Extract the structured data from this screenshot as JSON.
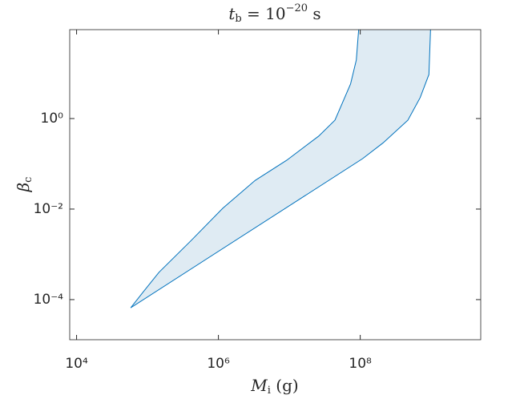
{
  "chart_data": {
    "type": "area",
    "title": {
      "base": "t",
      "sub": "b",
      "rest": " = 10",
      "sup": "−20",
      "unit": " s"
    },
    "xlabel": {
      "base": "M",
      "sub": "i",
      "unit": " (g)"
    },
    "ylabel": {
      "base": "β",
      "sub": "c"
    },
    "log_x": true,
    "log_y": true,
    "xlim": [
      8000,
      5000000000
    ],
    "ylim": [
      1.3e-05,
      92
    ],
    "xticks": [
      {
        "value": 10000,
        "label": "10⁴"
      },
      {
        "value": 1000000,
        "label": "10⁶"
      },
      {
        "value": 100000000,
        "label": "10⁸"
      }
    ],
    "yticks": [
      {
        "value": 0.0001,
        "label": "10⁻⁴"
      },
      {
        "value": 0.01,
        "label": "10⁻²"
      },
      {
        "value": 1,
        "label": "10⁰"
      }
    ],
    "fill_color": "#dfebf3",
    "line_color": "#0072bd",
    "series": [
      {
        "x": [
          58000,
          86000,
          145000,
          410000,
          1150000,
          3300000,
          9200000,
          26000000,
          44000000,
          73000000,
          88000000,
          95000000
        ],
        "values": [
          6.6e-05,
          0.000144,
          0.0004,
          0.002,
          0.0104,
          0.043,
          0.12,
          0.41,
          0.92,
          5.8,
          19.6,
          92
        ]
      },
      {
        "x": [
          58000,
          108000000,
          210000000,
          470000000,
          700000000,
          930000000,
          980000000
        ],
        "values": [
          6.6e-05,
          0.13,
          0.29,
          0.92,
          2.9,
          9.4,
          92
        ]
      }
    ]
  }
}
